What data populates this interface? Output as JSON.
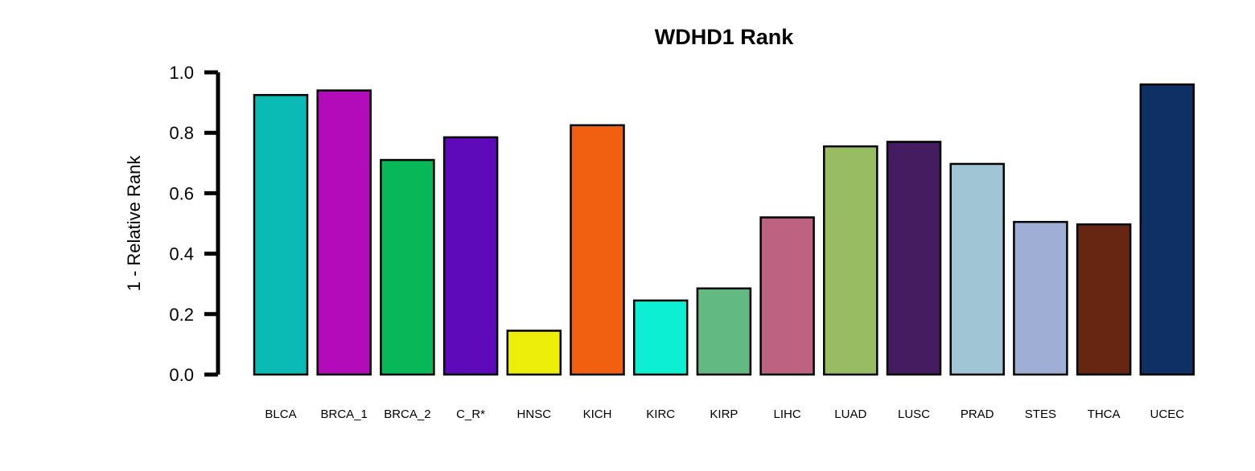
{
  "chart_data": {
    "type": "bar",
    "title": "WDHD1 Rank",
    "xlabel": "",
    "ylabel": "1 - Relative Rank",
    "ylim": [
      0,
      1.0
    ],
    "yticks": [
      "0.0",
      "0.2",
      "0.4",
      "0.6",
      "0.8",
      "1.0"
    ],
    "grid": false,
    "legend": "none",
    "categories": [
      "BLCA",
      "BRCA_1",
      "BRCA_2",
      "C_R*",
      "HNSC",
      "KICH",
      "KIRC",
      "KIRP",
      "LIHC",
      "LUAD",
      "LUSC",
      "PRAD",
      "STES",
      "THCA",
      "UCEC"
    ],
    "values": [
      0.925,
      0.94,
      0.71,
      0.785,
      0.145,
      0.825,
      0.245,
      0.285,
      0.52,
      0.755,
      0.77,
      0.697,
      0.505,
      0.497,
      0.96
    ],
    "colors": [
      "#0ABAB5",
      "#B40BBA",
      "#08B858",
      "#5E09BA",
      "#EEEE0B",
      "#F06010",
      "#0DEFD3",
      "#62BA82",
      "#BD6281",
      "#98BC62",
      "#461C60",
      "#A0C5D4",
      "#9FAED4",
      "#662612",
      "#0E3064"
    ]
  }
}
